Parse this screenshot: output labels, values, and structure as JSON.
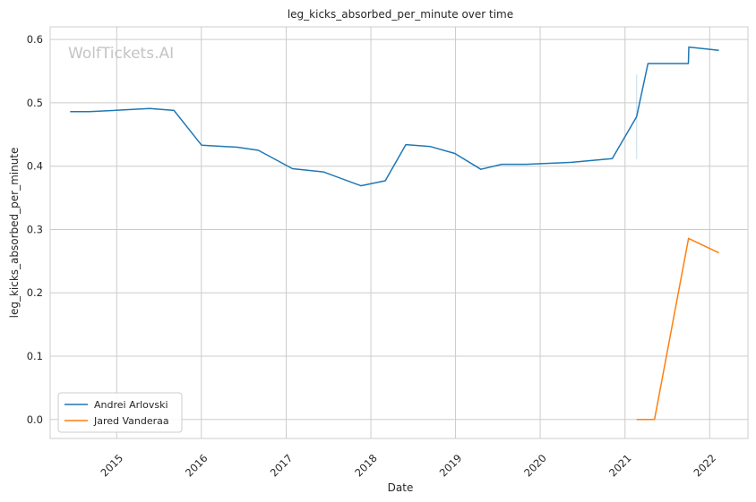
{
  "chart_data": {
    "type": "line",
    "title": "leg_kicks_absorbed_per_minute over time",
    "xlabel": "Date",
    "ylabel": "leg_kicks_absorbed_per_minute",
    "watermark": "WolfTickets.AI",
    "xlim": [
      "2014-03-20",
      "2022-06-15"
    ],
    "ylim": [
      -0.03,
      0.62
    ],
    "x_ticks": [
      "2015",
      "2016",
      "2017",
      "2018",
      "2019",
      "2020",
      "2021",
      "2022"
    ],
    "y_ticks": [
      "0.0",
      "0.1",
      "0.2",
      "0.3",
      "0.4",
      "0.5",
      "0.6"
    ],
    "grid": true,
    "legend": "lower-left",
    "series": [
      {
        "name": "Andrei Arlovski",
        "color": "#1f77b4",
        "points": [
          {
            "x": "2014-06-14",
            "y": 0.486
          },
          {
            "x": "2014-09-05",
            "y": 0.486
          },
          {
            "x": "2015-05-23",
            "y": 0.491
          },
          {
            "x": "2015-09-05",
            "y": 0.488
          },
          {
            "x": "2016-01-02",
            "y": 0.433
          },
          {
            "x": "2016-06-04",
            "y": 0.43
          },
          {
            "x": "2016-09-03",
            "y": 0.425
          },
          {
            "x": "2017-01-28",
            "y": 0.396
          },
          {
            "x": "2017-06-10",
            "y": 0.391
          },
          {
            "x": "2017-11-19",
            "y": 0.369
          },
          {
            "x": "2018-03-04",
            "y": 0.377
          },
          {
            "x": "2018-06-01",
            "y": 0.434
          },
          {
            "x": "2018-09-15",
            "y": 0.431
          },
          {
            "x": "2018-12-29",
            "y": 0.42
          },
          {
            "x": "2019-04-20",
            "y": 0.395
          },
          {
            "x": "2019-07-20",
            "y": 0.403
          },
          {
            "x": "2019-11-02",
            "y": 0.403
          },
          {
            "x": "2020-05-16",
            "y": 0.406
          },
          {
            "x": "2020-11-07",
            "y": 0.412
          },
          {
            "x": "2021-02-20",
            "y": 0.478
          },
          {
            "x": "2021-04-10",
            "y": 0.562
          },
          {
            "x": "2021-10-01",
            "y": 0.562
          },
          {
            "x": "2021-10-03",
            "y": 0.588
          },
          {
            "x": "2022-02-10",
            "y": 0.583
          }
        ],
        "error_band": {
          "x": "2021-02-20",
          "low": 0.411,
          "high": 0.545
        }
      },
      {
        "name": "Jared Vanderaa",
        "color": "#ff7f0e",
        "points": [
          {
            "x": "2021-02-20",
            "y": 0.0
          },
          {
            "x": "2021-05-08",
            "y": 0.0
          },
          {
            "x": "2021-10-02",
            "y": 0.286
          },
          {
            "x": "2022-02-10",
            "y": 0.263
          }
        ]
      }
    ]
  }
}
